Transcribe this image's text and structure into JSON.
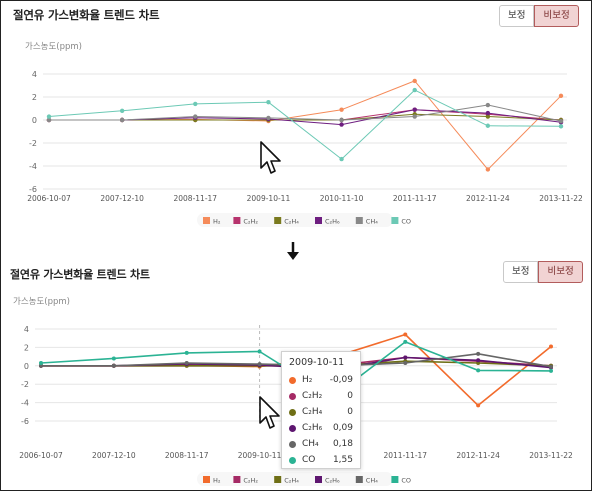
{
  "panels": [
    {
      "title": "절연유 가스변화율 트렌드 차트",
      "buttons": [
        {
          "label": "보정",
          "active": false
        },
        {
          "label": "비보정",
          "active": true
        }
      ],
      "chart_data": {
        "type": "line",
        "ylabel": "가스농도(ppm)",
        "ylim": [
          -6,
          4
        ],
        "yticks": [
          4,
          2,
          0,
          -2,
          -4,
          -6
        ],
        "x": [
          "2006-10-07",
          "2007-12-10",
          "2008-11-17",
          "2009-10-11",
          "2010-11-10",
          "2011-11-17",
          "2012-11-24",
          "2013-11-22"
        ],
        "x_values": [
          "2006-10-07",
          "2007-12-10",
          "2008-11-17",
          "2009-10-11",
          "2010-11-10",
          "2011-11-17",
          "2012-11-24",
          "2013-11-22"
        ],
        "series": [
          {
            "name": "H₂",
            "color": "#f58b5a",
            "values": [
              0,
              0,
              0.05,
              -0.09,
              0.9,
              3.4,
              -4.3,
              2.1
            ]
          },
          {
            "name": "C₂H₂",
            "color": "#b7336d",
            "values": [
              0,
              0,
              0,
              0,
              0,
              0.9,
              0.5,
              0
            ]
          },
          {
            "name": "C₂H₄",
            "color": "#7a7a1e",
            "values": [
              0,
              0,
              0,
              0,
              0,
              0.5,
              0.3,
              0
            ]
          },
          {
            "name": "C₂H₆",
            "color": "#6e1e80",
            "values": [
              0,
              0,
              0.2,
              0.09,
              -0.4,
              0.9,
              0.6,
              -0.2
            ]
          },
          {
            "name": "CH₄",
            "color": "#888888",
            "values": [
              0,
              0,
              0.3,
              0.18,
              0,
              0.3,
              1.3,
              -0.1
            ]
          },
          {
            "name": "CO",
            "color": "#6cc9b5",
            "values": [
              0.3,
              0.8,
              1.4,
              1.55,
              -3.4,
              2.6,
              -0.5,
              -0.55
            ]
          }
        ]
      }
    },
    {
      "title": "절연유 가스변화율 트렌드 차트",
      "buttons": [
        {
          "label": "보정",
          "active": false
        },
        {
          "label": "비보정",
          "active": true
        }
      ],
      "chart_data": {
        "type": "line",
        "ylabel": "가스농도(ppm)",
        "ylim": [
          -6,
          4
        ],
        "yticks": [
          4,
          2,
          0,
          -2,
          -4,
          -6
        ],
        "x": [
          "2006-10-07",
          "2007-12-10",
          "2008-11-17",
          "2009-10-11",
          "2010-11-10",
          "2011-11-17",
          "2012-11-24",
          "2013-11-22"
        ],
        "x_values": [
          "2006-10-07",
          "2007-12-10",
          "2008-11-17",
          "2009-10-11",
          "2010-11-10",
          "2011-11-17",
          "2012-11-24",
          "2013-11-22"
        ],
        "series": [
          {
            "name": "H₂",
            "color": "#f26b2c",
            "values": [
              0,
              0,
              0.05,
              -0.09,
              0.9,
              3.4,
              -4.3,
              2.1
            ]
          },
          {
            "name": "C₂H₂",
            "color": "#a52a65",
            "values": [
              0,
              0,
              0,
              0,
              0,
              0.9,
              0.5,
              0
            ]
          },
          {
            "name": "C₂H₄",
            "color": "#6f6f16",
            "values": [
              0,
              0,
              0,
              0,
              0,
              0.5,
              0.3,
              0
            ]
          },
          {
            "name": "C₂H₆",
            "color": "#5e1670",
            "values": [
              0,
              0,
              0.2,
              0.09,
              -0.4,
              0.9,
              0.6,
              -0.2
            ]
          },
          {
            "name": "CH₄",
            "color": "#666666",
            "values": [
              0,
              0,
              0.3,
              0.18,
              0,
              0.3,
              1.3,
              -0.1
            ]
          },
          {
            "name": "CO",
            "color": "#2bb394",
            "values": [
              0.3,
              0.8,
              1.4,
              1.55,
              -3.4,
              2.6,
              -0.5,
              -0.55
            ]
          }
        ]
      },
      "tooltip": {
        "date": "2009-10-11",
        "rows": [
          {
            "name": "H₂",
            "value": "-0,09"
          },
          {
            "name": "C₂H₂",
            "value": "0"
          },
          {
            "name": "C₂H₄",
            "value": "0"
          },
          {
            "name": "C₂H₆",
            "value": "0,09"
          },
          {
            "name": "CH₄",
            "value": "0,18"
          },
          {
            "name": "CO",
            "value": "1,55"
          }
        ]
      }
    }
  ]
}
